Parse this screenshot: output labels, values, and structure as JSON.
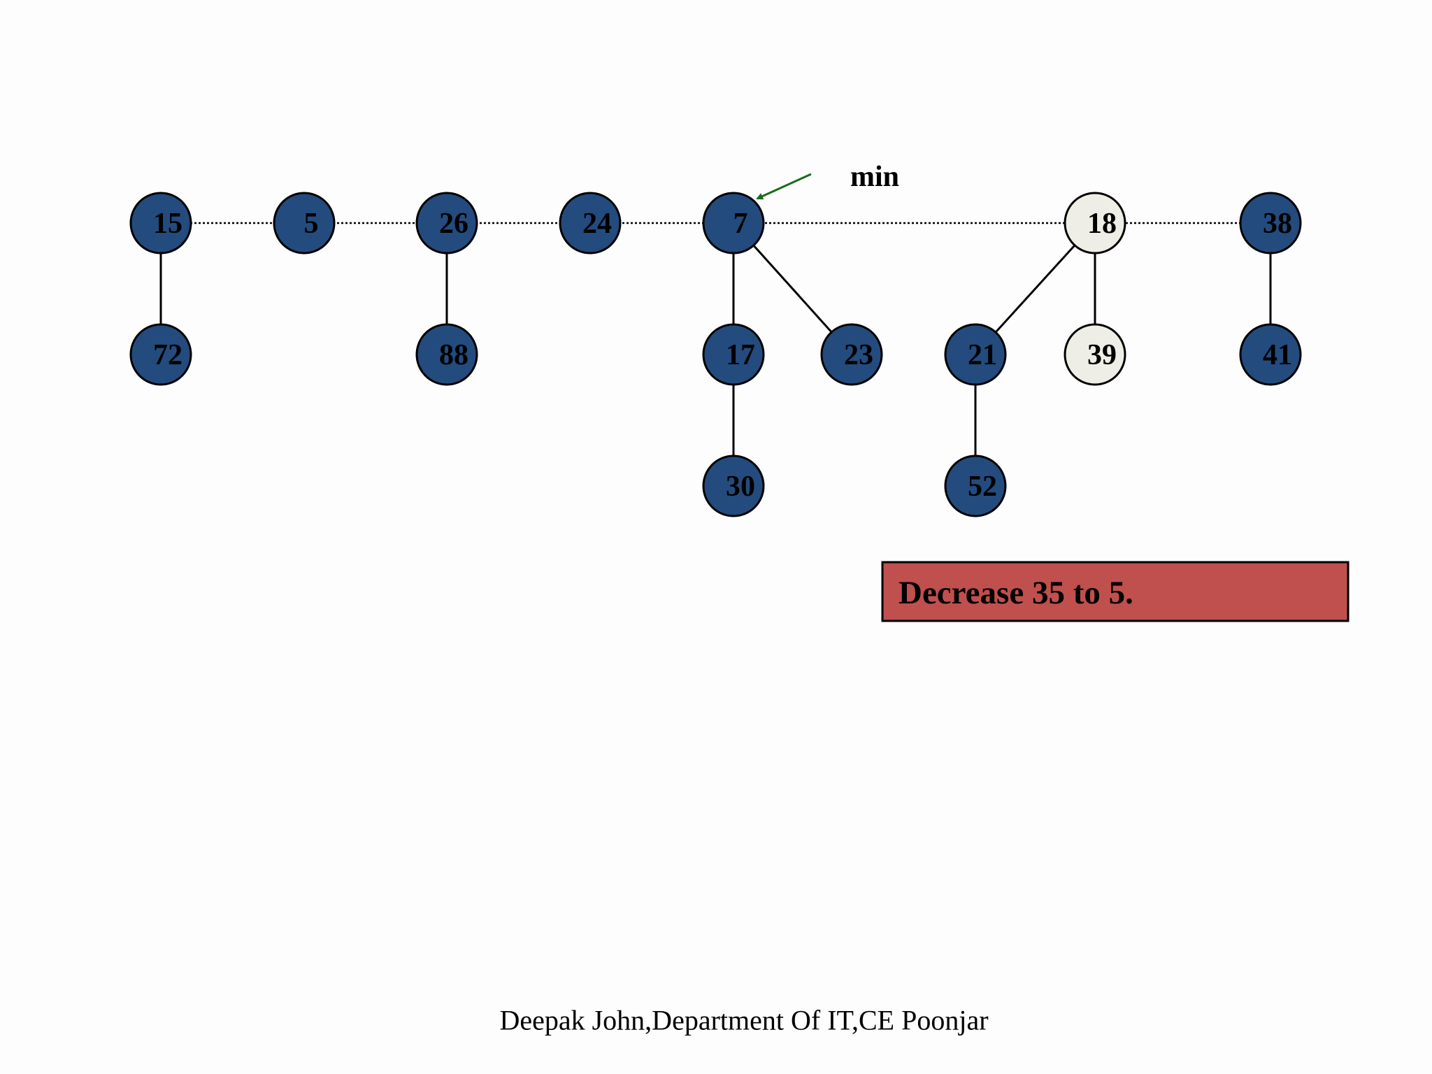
{
  "nodes": [
    "15",
    "5",
    "26",
    "24",
    "7",
    "18",
    "38",
    "72",
    "88",
    "17",
    "23",
    "21",
    "39",
    "41",
    "30",
    "52"
  ],
  "min_label": "min",
  "caption": "Decrease 35 to 5.",
  "footer": "Deepak John,Department Of IT,CE Poonjar"
}
